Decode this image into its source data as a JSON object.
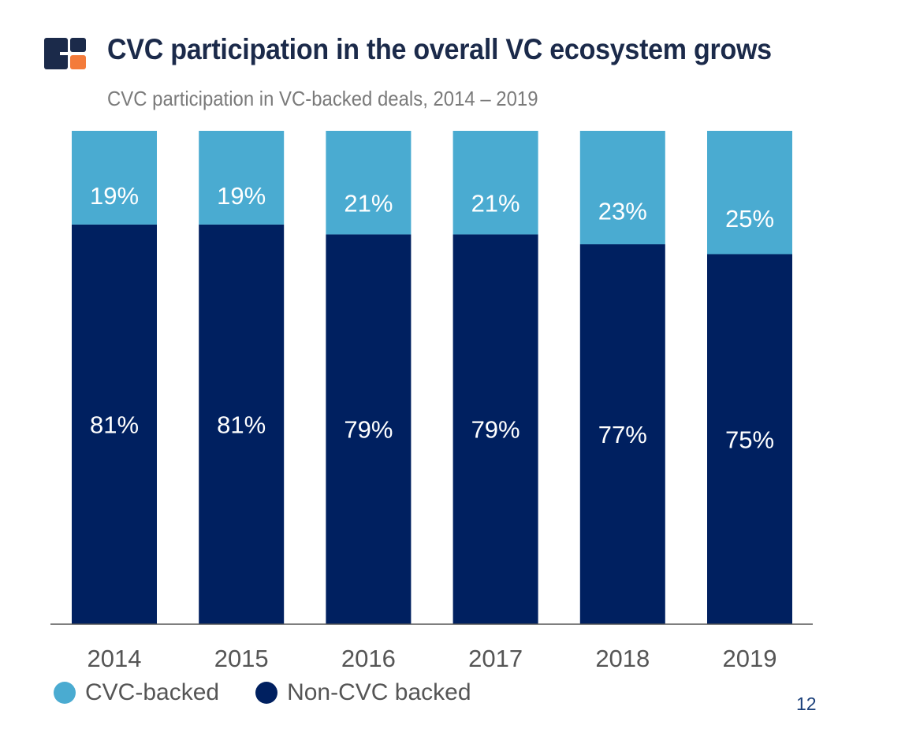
{
  "header": {
    "title": "CVC participation in the overall VC ecosystem grows",
    "subtitle": "CVC participation in VC-backed deals, 2014 – 2019",
    "logo_icon": "cb-insights-logo-icon"
  },
  "colors": {
    "cvc": "#4aabd1",
    "non_cvc": "#002060",
    "logo_navy": "#1b2a4a",
    "logo_orange": "#f47b3a",
    "title": "#1b2a4a",
    "page_number": "#1a3f7a"
  },
  "chart_data": {
    "type": "bar",
    "stacked": true,
    "percent_stacked": true,
    "categories": [
      "2014",
      "2015",
      "2016",
      "2017",
      "2018",
      "2019"
    ],
    "series": [
      {
        "name": "Non-CVC backed",
        "values": [
          81,
          81,
          79,
          79,
          77,
          75
        ],
        "labels": [
          "81%",
          "81%",
          "79%",
          "79%",
          "77%",
          "75%"
        ]
      },
      {
        "name": "CVC-backed",
        "values": [
          19,
          19,
          21,
          21,
          23,
          25
        ],
        "labels": [
          "19%",
          "19%",
          "21%",
          "21%",
          "23%",
          "25%"
        ]
      }
    ],
    "ylim": [
      0,
      100
    ],
    "grid": false,
    "legend_position": "bottom-left"
  },
  "legend": {
    "cvc_label": "CVC-backed",
    "non_cvc_label": "Non-CVC backed"
  },
  "page_number": "12"
}
